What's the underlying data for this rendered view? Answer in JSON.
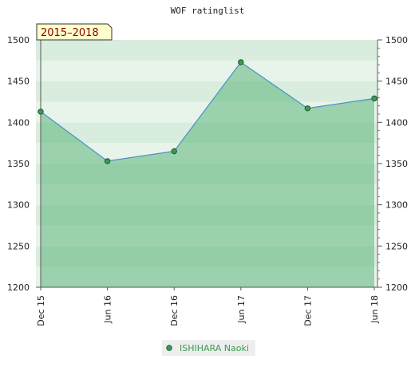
{
  "chart_data": {
    "type": "area",
    "title": "WOF ratinglist",
    "badge": "2015–2018",
    "xlabel": "",
    "ylabel": "",
    "x": [
      "Dec 15",
      "Jun 16",
      "Dec 16",
      "Jun 17",
      "Dec 17",
      "Jun 18"
    ],
    "series": [
      {
        "name": "ISHIHARA Naoki",
        "values": [
          1413,
          1353,
          1365,
          1473,
          1417,
          1429
        ]
      }
    ],
    "ylim": [
      1200,
      1500
    ],
    "yticks": [
      1200,
      1250,
      1300,
      1350,
      1400,
      1450,
      1500
    ],
    "grid": true,
    "legend": "bottom-center",
    "colors": {
      "line": "#4a90c8",
      "area": "#5bb57a",
      "marker": "#3c9a55",
      "legend_text": "#3c9a55",
      "badge_fill": "#ffffcc",
      "badge_text": "#8b0000"
    }
  }
}
